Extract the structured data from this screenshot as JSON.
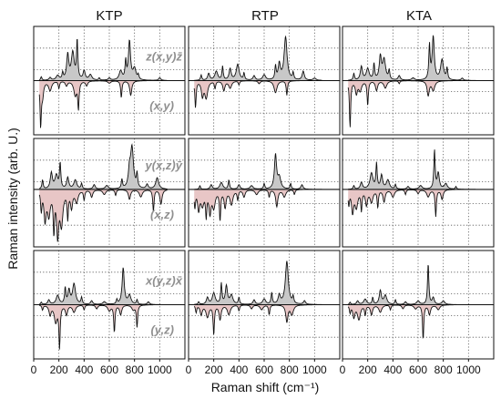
{
  "chart_data": {
    "type": "line",
    "ylabel": "Raman intensity (arb. U.)",
    "xlabel": "Raman shift (cm⁻¹)",
    "xlim": [
      0,
      1200
    ],
    "xticks": [
      "0",
      "200",
      "400",
      "600",
      "800",
      "1000"
    ],
    "grid": true,
    "columns": [
      "KTP",
      "RTP",
      "KTA"
    ],
    "rows": [
      {
        "upper_label": "z(x,y)z̄",
        "lower_label": "(x,y)"
      },
      {
        "upper_label": "y(x,z)ȳ",
        "lower_label": "(x,z)"
      },
      {
        "upper_label": "x(y,z)x̄",
        "lower_label": "(y,z)"
      }
    ],
    "colors": {
      "upper_fill": "#c8c8c8",
      "lower_fill": "#e8c6c6",
      "line": "#111111",
      "grid": "#555555"
    },
    "panels": [
      {
        "row": 0,
        "col": 0,
        "upper": [
          [
            60,
            0.08
          ],
          [
            130,
            0.06
          ],
          [
            190,
            0.1
          ],
          [
            230,
            0.15
          ],
          [
            270,
            0.55
          ],
          [
            310,
            0.6
          ],
          [
            345,
            0.85
          ],
          [
            400,
            0.2
          ],
          [
            450,
            0.12
          ],
          [
            520,
            0.05
          ],
          [
            600,
            0.05
          ],
          [
            690,
            0.2
          ],
          [
            730,
            0.4
          ],
          [
            760,
            0.85
          ],
          [
            800,
            0.25
          ],
          [
            830,
            0.1
          ],
          [
            1000,
            0.06
          ]
        ],
        "lower": [
          [
            55,
            0.9
          ],
          [
            70,
            0.3
          ],
          [
            130,
            0.2
          ],
          [
            200,
            0.15
          ],
          [
            260,
            0.1
          ],
          [
            330,
            0.3
          ],
          [
            355,
            0.55
          ],
          [
            420,
            0.1
          ],
          [
            600,
            0.05
          ],
          [
            695,
            0.35
          ],
          [
            770,
            0.3
          ]
        ]
      },
      {
        "row": 0,
        "col": 1,
        "upper": [
          [
            100,
            0.12
          ],
          [
            160,
            0.15
          ],
          [
            220,
            0.2
          ],
          [
            270,
            0.3
          ],
          [
            330,
            0.25
          ],
          [
            390,
            0.35
          ],
          [
            440,
            0.15
          ],
          [
            520,
            0.1
          ],
          [
            600,
            0.12
          ],
          [
            690,
            0.3
          ],
          [
            720,
            0.35
          ],
          [
            770,
            0.95
          ],
          [
            830,
            0.15
          ],
          [
            910,
            0.2
          ],
          [
            1000,
            0.05
          ]
        ],
        "lower": [
          [
            55,
            0.55
          ],
          [
            110,
            0.3
          ],
          [
            140,
            0.35
          ],
          [
            210,
            0.15
          ],
          [
            280,
            0.2
          ],
          [
            330,
            0.15
          ],
          [
            400,
            0.08
          ],
          [
            560,
            0.06
          ],
          [
            690,
            0.25
          ],
          [
            780,
            0.3
          ]
        ]
      },
      {
        "row": 0,
        "col": 2,
        "upper": [
          [
            90,
            0.15
          ],
          [
            150,
            0.3
          ],
          [
            200,
            0.25
          ],
          [
            250,
            0.35
          ],
          [
            300,
            0.5
          ],
          [
            330,
            0.45
          ],
          [
            370,
            0.2
          ],
          [
            450,
            0.1
          ],
          [
            560,
            0.05
          ],
          [
            690,
            0.75
          ],
          [
            720,
            0.95
          ],
          [
            790,
            0.45
          ],
          [
            830,
            0.25
          ],
          [
            950,
            0.05
          ]
        ],
        "lower": [
          [
            60,
            0.95
          ],
          [
            110,
            0.25
          ],
          [
            140,
            0.2
          ],
          [
            200,
            0.5
          ],
          [
            270,
            0.2
          ],
          [
            340,
            0.15
          ],
          [
            450,
            0.06
          ],
          [
            680,
            0.3
          ],
          [
            720,
            0.2
          ]
        ]
      },
      {
        "row": 1,
        "col": 0,
        "upper": [
          [
            70,
            0.2
          ],
          [
            140,
            0.35
          ],
          [
            180,
            0.3
          ],
          [
            210,
            0.55
          ],
          [
            270,
            0.25
          ],
          [
            330,
            0.2
          ],
          [
            380,
            0.12
          ],
          [
            480,
            0.1
          ],
          [
            580,
            0.08
          ],
          [
            700,
            0.2
          ],
          [
            760,
            0.35
          ],
          [
            780,
            0.9
          ],
          [
            820,
            0.3
          ],
          [
            900,
            0.1
          ],
          [
            980,
            0.25
          ]
        ],
        "lower": [
          [
            60,
            0.4
          ],
          [
            90,
            0.6
          ],
          [
            120,
            0.5
          ],
          [
            160,
            0.8
          ],
          [
            190,
            0.9
          ],
          [
            220,
            0.7
          ],
          [
            270,
            0.55
          ],
          [
            300,
            0.35
          ],
          [
            340,
            0.25
          ],
          [
            400,
            0.2
          ],
          [
            460,
            0.15
          ],
          [
            560,
            0.1
          ],
          [
            650,
            0.12
          ],
          [
            760,
            0.2
          ],
          [
            850,
            0.15
          ],
          [
            950,
            0.45
          ],
          [
            1010,
            0.3
          ]
        ]
      },
      {
        "row": 1,
        "col": 1,
        "upper": [
          [
            90,
            0.08
          ],
          [
            180,
            0.1
          ],
          [
            260,
            0.15
          ],
          [
            320,
            0.2
          ],
          [
            400,
            0.1
          ],
          [
            500,
            0.08
          ],
          [
            600,
            0.12
          ],
          [
            690,
            0.75
          ],
          [
            720,
            0.25
          ],
          [
            810,
            0.12
          ],
          [
            900,
            0.1
          ]
        ],
        "lower": [
          [
            50,
            0.35
          ],
          [
            80,
            0.4
          ],
          [
            110,
            0.3
          ],
          [
            140,
            0.5
          ],
          [
            170,
            0.45
          ],
          [
            200,
            0.35
          ],
          [
            250,
            0.6
          ],
          [
            290,
            0.35
          ],
          [
            340,
            0.3
          ],
          [
            390,
            0.2
          ],
          [
            440,
            0.15
          ],
          [
            540,
            0.1
          ],
          [
            640,
            0.15
          ],
          [
            700,
            0.35
          ],
          [
            760,
            0.15
          ],
          [
            840,
            0.1
          ]
        ]
      },
      {
        "row": 1,
        "col": 2,
        "upper": [
          [
            90,
            0.08
          ],
          [
            150,
            0.15
          ],
          [
            230,
            0.35
          ],
          [
            270,
            0.55
          ],
          [
            310,
            0.3
          ],
          [
            360,
            0.2
          ],
          [
            420,
            0.1
          ],
          [
            520,
            0.06
          ],
          [
            620,
            0.08
          ],
          [
            730,
            0.85
          ],
          [
            760,
            0.35
          ],
          [
            820,
            0.12
          ],
          [
            900,
            0.06
          ]
        ],
        "lower": [
          [
            50,
            0.3
          ],
          [
            80,
            0.45
          ],
          [
            110,
            0.35
          ],
          [
            150,
            0.4
          ],
          [
            190,
            0.3
          ],
          [
            230,
            0.25
          ],
          [
            280,
            0.35
          ],
          [
            330,
            0.25
          ],
          [
            400,
            0.15
          ],
          [
            500,
            0.1
          ],
          [
            600,
            0.08
          ],
          [
            680,
            0.15
          ],
          [
            740,
            0.55
          ],
          [
            790,
            0.2
          ]
        ]
      },
      {
        "row": 2,
        "col": 0,
        "upper": [
          [
            60,
            0.05
          ],
          [
            120,
            0.1
          ],
          [
            190,
            0.2
          ],
          [
            250,
            0.35
          ],
          [
            280,
            0.3
          ],
          [
            320,
            0.45
          ],
          [
            380,
            0.15
          ],
          [
            460,
            0.08
          ],
          [
            560,
            0.06
          ],
          [
            660,
            0.1
          ],
          [
            710,
            0.8
          ],
          [
            760,
            0.2
          ],
          [
            820,
            0.1
          ],
          [
            910,
            0.06
          ]
        ],
        "lower": [
          [
            70,
            0.1
          ],
          [
            130,
            0.2
          ],
          [
            175,
            0.35
          ],
          [
            205,
            0.85
          ],
          [
            260,
            0.2
          ],
          [
            320,
            0.15
          ],
          [
            400,
            0.1
          ],
          [
            500,
            0.08
          ],
          [
            600,
            0.12
          ],
          [
            640,
            0.55
          ],
          [
            690,
            0.2
          ],
          [
            790,
            0.1
          ],
          [
            820,
            0.45
          ]
        ]
      },
      {
        "row": 2,
        "col": 1,
        "upper": [
          [
            80,
            0.06
          ],
          [
            150,
            0.15
          ],
          [
            200,
            0.25
          ],
          [
            260,
            0.45
          ],
          [
            300,
            0.4
          ],
          [
            340,
            0.2
          ],
          [
            400,
            0.15
          ],
          [
            520,
            0.1
          ],
          [
            600,
            0.12
          ],
          [
            660,
            0.25
          ],
          [
            720,
            0.2
          ],
          [
            780,
            0.95
          ],
          [
            830,
            0.15
          ],
          [
            920,
            0.08
          ]
        ],
        "lower": [
          [
            60,
            0.15
          ],
          [
            100,
            0.2
          ],
          [
            150,
            0.25
          ],
          [
            200,
            0.6
          ],
          [
            250,
            0.3
          ],
          [
            320,
            0.2
          ],
          [
            400,
            0.12
          ],
          [
            500,
            0.08
          ],
          [
            580,
            0.1
          ],
          [
            640,
            0.2
          ],
          [
            780,
            0.35
          ],
          [
            820,
            0.2
          ]
        ]
      },
      {
        "row": 2,
        "col": 2,
        "upper": [
          [
            60,
            0.05
          ],
          [
            120,
            0.08
          ],
          [
            180,
            0.12
          ],
          [
            240,
            0.15
          ],
          [
            300,
            0.3
          ],
          [
            340,
            0.2
          ],
          [
            420,
            0.1
          ],
          [
            500,
            0.06
          ],
          [
            600,
            0.08
          ],
          [
            680,
            0.9
          ],
          [
            720,
            0.15
          ],
          [
            800,
            0.08
          ]
        ],
        "lower": [
          [
            60,
            0.15
          ],
          [
            90,
            0.25
          ],
          [
            130,
            0.3
          ],
          [
            180,
            0.2
          ],
          [
            230,
            0.2
          ],
          [
            300,
            0.15
          ],
          [
            380,
            0.1
          ],
          [
            480,
            0.08
          ],
          [
            580,
            0.08
          ],
          [
            640,
            0.7
          ],
          [
            690,
            0.2
          ],
          [
            760,
            0.1
          ]
        ]
      }
    ]
  }
}
